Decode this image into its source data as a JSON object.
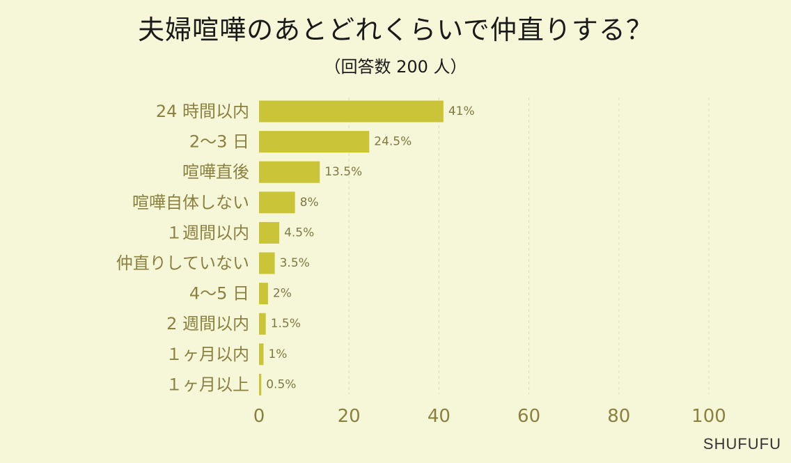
{
  "title": "夫婦喧嘩のあとどれくらいで仲直りする？",
  "subtitle": "（回答数 200 人）",
  "brand": "SHUFUFU",
  "colors": {
    "background": "#f6f7d8",
    "bar": "#cac538",
    "label": "#8a8040",
    "value_label": "#7e7842",
    "grid": "#dcdcc4"
  },
  "chart_data": {
    "type": "bar",
    "orientation": "horizontal",
    "categories": [
      "24 時間以内",
      "2～3 日",
      "喧嘩直後",
      "喧嘩自体しない",
      "１週間以内",
      "仲直りしていない",
      "4～5 日",
      "2 週間以内",
      "１ヶ月以内",
      "１ヶ月以上"
    ],
    "values": [
      41,
      24.5,
      13.5,
      8,
      4.5,
      3.5,
      2,
      1.5,
      1,
      0.5
    ],
    "value_labels": [
      "41%",
      "24.5%",
      "13.5%",
      "8%",
      "4.5%",
      "3.5%",
      "2%",
      "1.5%",
      "1%",
      "0.5%"
    ],
    "x_ticks": [
      "0",
      "20",
      "40",
      "60",
      "80",
      "100"
    ],
    "xlim": [
      0,
      100
    ],
    "grid": true,
    "legend": "none"
  }
}
